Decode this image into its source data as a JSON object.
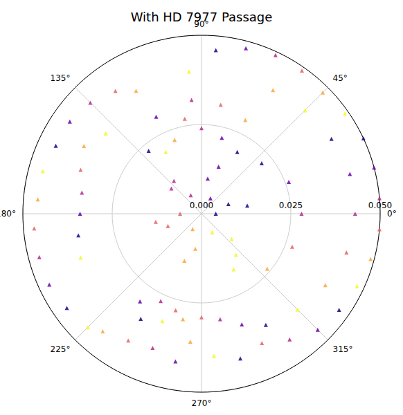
{
  "chart_data": {
    "type": "scatter",
    "title": "With HD 7977 Passage",
    "marker": "triangle",
    "grid": true,
    "rlim": [
      0,
      0.05
    ],
    "rticks": [
      {
        "value": 0,
        "label": "0.000"
      },
      {
        "value": 0.025,
        "label": "0.025"
      },
      {
        "value": 0.05,
        "label": "0.050"
      }
    ],
    "thetalim": [
      0,
      360
    ],
    "thetaticks": [
      {
        "value": 0,
        "label": "0°"
      },
      {
        "value": 45,
        "label": "45°"
      },
      {
        "value": 90,
        "label": "90°"
      },
      {
        "value": 135,
        "label": "135°"
      },
      {
        "value": 180,
        "label": "180°"
      },
      {
        "value": 225,
        "label": "225°"
      },
      {
        "value": 270,
        "label": "270°"
      },
      {
        "value": 315,
        "label": "315°"
      }
    ],
    "theta": [
      0,
      60,
      120,
      180,
      240,
      300,
      20,
      80,
      140,
      200,
      260,
      320,
      10,
      70,
      130,
      190,
      250,
      310,
      40,
      20,
      0,
      340,
      320,
      300,
      60,
      75,
      90,
      100,
      110,
      120,
      130,
      115,
      95,
      80,
      65,
      95,
      85,
      75,
      65,
      55,
      45,
      35,
      25,
      15,
      5,
      355,
      345,
      335,
      325,
      315,
      305,
      295,
      60,
      45,
      30,
      15,
      0,
      345,
      330,
      315,
      300,
      290,
      280,
      270,
      260,
      250,
      240,
      235,
      245,
      255,
      265,
      275,
      285,
      260,
      250,
      240,
      230,
      225,
      215,
      205,
      195,
      185,
      175,
      165,
      155,
      145,
      135,
      125,
      118,
      200,
      190,
      180,
      170,
      160,
      150,
      140
    ],
    "r": [
      0.004,
      0.005,
      0.006,
      0.006,
      0.005,
      0.006,
      0.008,
      0.01,
      0.011,
      0.01,
      0.01,
      0.011,
      0.013,
      0.014,
      0.012,
      0.013,
      0.014,
      0.015,
      0.022,
      0.026,
      0.028,
      0.027,
      0.024,
      0.018,
      0.02,
      0.022,
      0.024,
      0.027,
      0.022,
      0.02,
      0.023,
      0.03,
      0.032,
      0.031,
      0.029,
      0.04,
      0.046,
      0.048,
      0.049,
      0.049,
      0.048,
      0.049,
      0.05,
      0.05,
      0.05,
      0.05,
      0.049,
      0.048,
      0.047,
      0.046,
      0.043,
      0.04,
      0.04,
      0.041,
      0.042,
      0.043,
      0.043,
      0.042,
      0.04,
      0.038,
      0.036,
      0.033,
      0.03,
      0.029,
      0.03,
      0.032,
      0.034,
      0.03,
      0.027,
      0.028,
      0.036,
      0.04,
      0.042,
      0.042,
      0.04,
      0.041,
      0.043,
      0.045,
      0.046,
      0.047,
      0.047,
      0.047,
      0.046,
      0.046,
      0.045,
      0.045,
      0.044,
      0.042,
      0.039,
      0.036,
      0.035,
      0.034,
      0.034,
      0.036,
      0.038,
      0.035
    ],
    "colors": [
      "#0d0887",
      "#6a00a8",
      "#b12a90",
      "#e16462",
      "#fca636",
      "#f0f921",
      "#0d0887",
      "#6a00a8",
      "#b12a90",
      "#e16462",
      "#fca636",
      "#f0f921",
      "#0d0887",
      "#6a00a8",
      "#b12a90",
      "#e16462",
      "#fca636",
      "#f0f921",
      "#0d0887",
      "#6a00a8",
      "#b12a90",
      "#e16462",
      "#fca636",
      "#f0f921",
      "#0d0887",
      "#6a00a8",
      "#b12a90",
      "#e16462",
      "#fca636",
      "#f0f921",
      "#0d0887",
      "#6a00a8",
      "#b12a90",
      "#e16462",
      "#fca636",
      "#f0f921",
      "#0d0887",
      "#6a00a8",
      "#b12a90",
      "#e16462",
      "#fca636",
      "#f0f921",
      "#0d0887",
      "#6a00a8",
      "#b12a90",
      "#e16462",
      "#fca636",
      "#f0f921",
      "#0d0887",
      "#6a00a8",
      "#b12a90",
      "#e16462",
      "#fca636",
      "#f0f921",
      "#0d0887",
      "#6a00a8",
      "#b12a90",
      "#e16462",
      "#fca636",
      "#f0f921",
      "#0d0887",
      "#6a00a8",
      "#b12a90",
      "#e16462",
      "#fca636",
      "#f0f921",
      "#0d0887",
      "#6a00a8",
      "#b12a90",
      "#e16462",
      "#fca636",
      "#f0f921",
      "#0d0887",
      "#6a00a8",
      "#b12a90",
      "#e16462",
      "#fca636",
      "#f0f921",
      "#0d0887",
      "#6a00a8",
      "#b12a90",
      "#e16462",
      "#fca636",
      "#f0f921",
      "#0d0887",
      "#6a00a8",
      "#b12a90",
      "#e16462",
      "#fca636",
      "#f0f921",
      "#0d0887",
      "#6a00a8",
      "#b12a90",
      "#e16462",
      "#fca636",
      "#f0f921"
    ]
  }
}
